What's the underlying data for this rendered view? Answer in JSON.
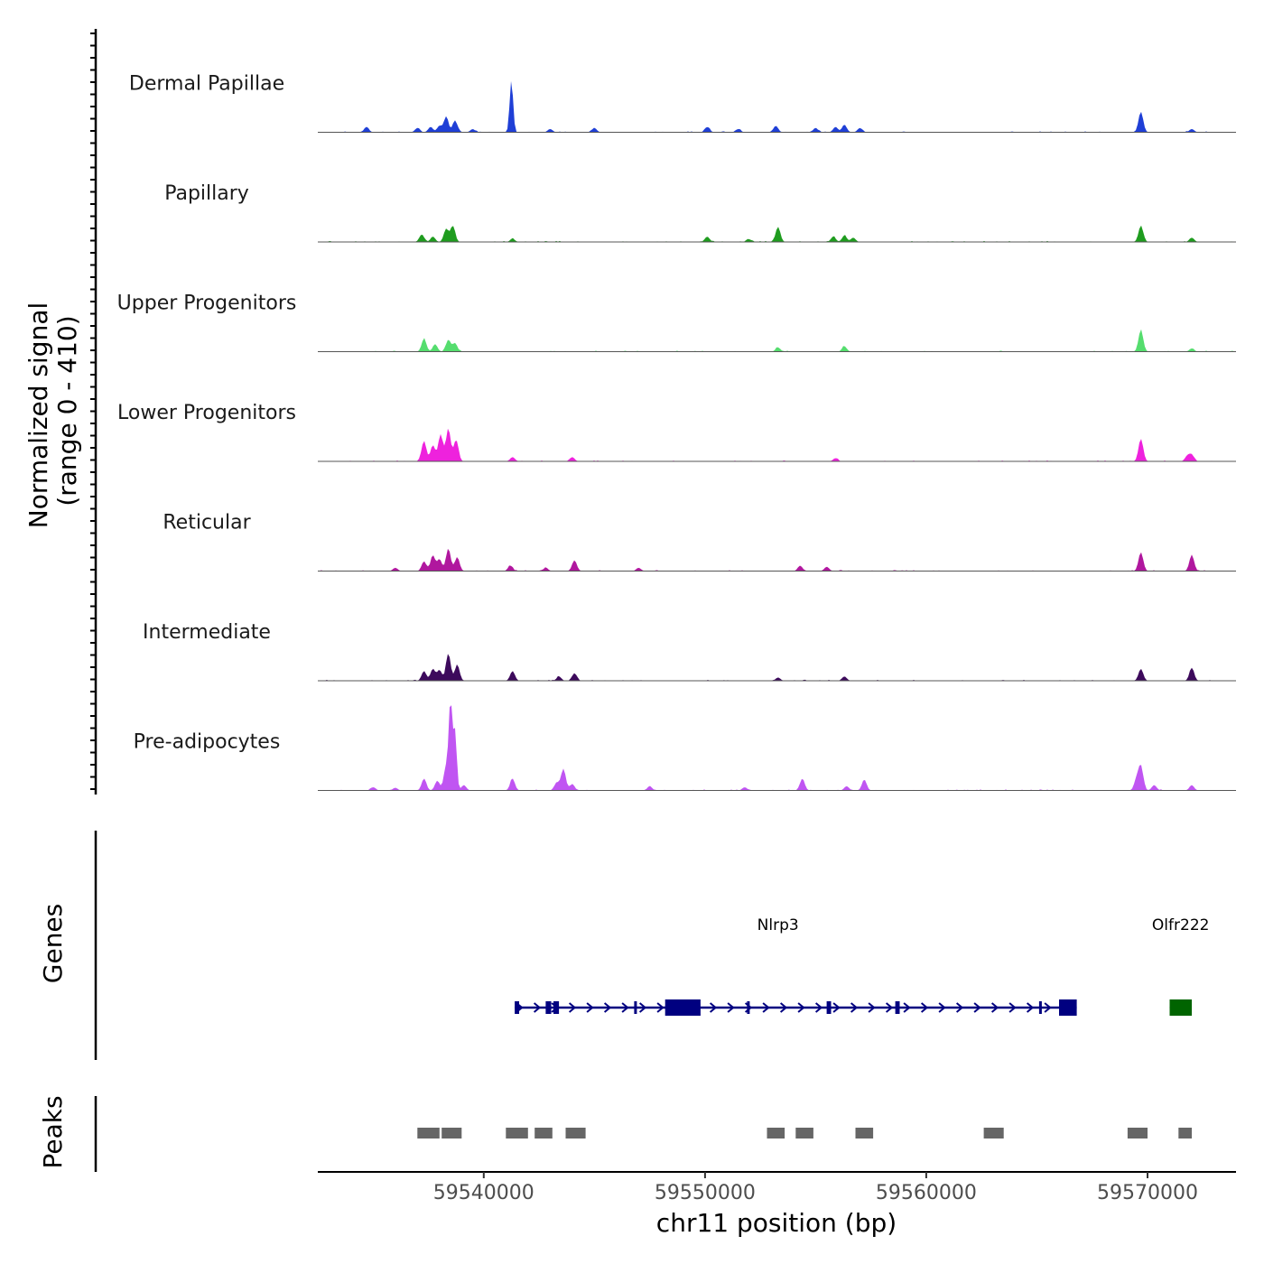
{
  "chart_data": {
    "type": "area",
    "chromosome": "chr11",
    "x_range": [
      59532500,
      59574000
    ],
    "y_axis_title": [
      "Normalized signal",
      "(range 0 - 410)"
    ],
    "y_range": [
      0,
      410
    ],
    "x_axis_title": "chr11 position (bp)",
    "x_ticks": [
      59540000,
      59550000,
      59560000,
      59570000
    ],
    "x_tick_labels": [
      "59540000",
      "59550000",
      "59560000",
      "59570000"
    ],
    "tracks": [
      {
        "name": "Dermal Papillae",
        "color": "#1f3fd6",
        "peaks": [
          [
            59534700,
            10
          ],
          [
            59537000,
            8
          ],
          [
            59537600,
            10
          ],
          [
            59538000,
            12
          ],
          [
            59538300,
            28
          ],
          [
            59538700,
            22
          ],
          [
            59539500,
            6
          ],
          [
            59541250,
            95
          ],
          [
            59543000,
            6
          ],
          [
            59545000,
            8
          ],
          [
            59550100,
            10
          ],
          [
            59551500,
            6
          ],
          [
            59553200,
            12
          ],
          [
            59555000,
            8
          ],
          [
            59555900,
            10
          ],
          [
            59556300,
            14
          ],
          [
            59557000,
            8
          ],
          [
            59569700,
            38
          ],
          [
            59572000,
            6
          ]
        ]
      },
      {
        "name": "Papillary",
        "color": "#1f9c1f",
        "peaks": [
          [
            59537200,
            14
          ],
          [
            59537700,
            10
          ],
          [
            59538300,
            24
          ],
          [
            59538600,
            30
          ],
          [
            59541300,
            6
          ],
          [
            59550100,
            10
          ],
          [
            59552000,
            5
          ],
          [
            59553300,
            28
          ],
          [
            59555800,
            10
          ],
          [
            59556300,
            12
          ],
          [
            59556700,
            8
          ],
          [
            59569700,
            30
          ],
          [
            59572000,
            8
          ]
        ]
      },
      {
        "name": "Upper Progenitors",
        "color": "#55dd6e",
        "peaks": [
          [
            59537300,
            24
          ],
          [
            59537800,
            14
          ],
          [
            59538400,
            22
          ],
          [
            59538700,
            16
          ],
          [
            59553300,
            8
          ],
          [
            59556300,
            10
          ],
          [
            59569700,
            40
          ],
          [
            59572000,
            6
          ]
        ]
      },
      {
        "name": "Lower Progenitors",
        "color": "#ee22dd",
        "peaks": [
          [
            59537300,
            38
          ],
          [
            59537700,
            30
          ],
          [
            59538050,
            50
          ],
          [
            59538400,
            60
          ],
          [
            59538750,
            40
          ],
          [
            59541300,
            8
          ],
          [
            59544000,
            8
          ],
          [
            59555900,
            6
          ],
          [
            59569700,
            42
          ],
          [
            59571800,
            10
          ],
          [
            59572000,
            12
          ]
        ]
      },
      {
        "name": "Reticular",
        "color": "#b0179e",
        "peaks": [
          [
            59536000,
            6
          ],
          [
            59537300,
            18
          ],
          [
            59537700,
            28
          ],
          [
            59538000,
            22
          ],
          [
            59538400,
            42
          ],
          [
            59538800,
            26
          ],
          [
            59541200,
            10
          ],
          [
            59542800,
            6
          ],
          [
            59544100,
            20
          ],
          [
            59547000,
            6
          ],
          [
            59554300,
            10
          ],
          [
            59555500,
            8
          ],
          [
            59569700,
            35
          ],
          [
            59572000,
            30
          ]
        ]
      },
      {
        "name": "Intermediate",
        "color": "#3d0a5c",
        "peaks": [
          [
            59537300,
            18
          ],
          [
            59537700,
            22
          ],
          [
            59538000,
            20
          ],
          [
            59538400,
            50
          ],
          [
            59538800,
            30
          ],
          [
            59541300,
            18
          ],
          [
            59543400,
            8
          ],
          [
            59544100,
            14
          ],
          [
            59553300,
            6
          ],
          [
            59556300,
            8
          ],
          [
            59569700,
            22
          ],
          [
            59572000,
            24
          ]
        ]
      },
      {
        "name": "Pre-adipocytes",
        "color": "#c055f2",
        "peaks": [
          [
            59535000,
            6
          ],
          [
            59536000,
            5
          ],
          [
            59537300,
            22
          ],
          [
            59537900,
            18
          ],
          [
            59538300,
            45
          ],
          [
            59538500,
            160
          ],
          [
            59538700,
            110
          ],
          [
            59539100,
            10
          ],
          [
            59541300,
            22
          ],
          [
            59543300,
            15
          ],
          [
            59543600,
            40
          ],
          [
            59544000,
            12
          ],
          [
            59547500,
            8
          ],
          [
            59551800,
            6
          ],
          [
            59554400,
            22
          ],
          [
            59556400,
            8
          ],
          [
            59557200,
            20
          ],
          [
            59569500,
            20
          ],
          [
            59569700,
            45
          ],
          [
            59570300,
            10
          ],
          [
            59572000,
            10
          ]
        ]
      }
    ],
    "genes": [
      {
        "name": "Nlrp3",
        "start": 59541400,
        "end": 59566800,
        "strand": "+",
        "color": "#000080",
        "exons": [
          [
            59541400,
            59541600
          ],
          [
            59542800,
            59543050
          ],
          [
            59543150,
            59543400
          ],
          [
            59546800,
            59546900
          ],
          [
            59548200,
            59549800
          ],
          [
            59551900,
            59552000
          ],
          [
            59555500,
            59555700
          ],
          [
            59558600,
            59558800
          ],
          [
            59565100,
            59565200
          ],
          [
            59566000,
            59566800
          ]
        ]
      },
      {
        "name": "Olfr222",
        "start": 59571000,
        "end": 59572000,
        "strand": "+",
        "color": "#006400",
        "exons": [
          [
            59571000,
            59572000
          ]
        ]
      }
    ],
    "peaks": [
      [
        59537000,
        59538000
      ],
      [
        59538100,
        59539000
      ],
      [
        59541000,
        59542000
      ],
      [
        59542300,
        59543100
      ],
      [
        59543700,
        59544600
      ],
      [
        59552800,
        59553600
      ],
      [
        59554100,
        59554900
      ],
      [
        59556800,
        59557600
      ],
      [
        59562600,
        59563500
      ],
      [
        59569100,
        59570000
      ],
      [
        59571400,
        59572000
      ]
    ],
    "panel_labels": {
      "genes": "Genes",
      "peaks": "Peaks"
    }
  }
}
